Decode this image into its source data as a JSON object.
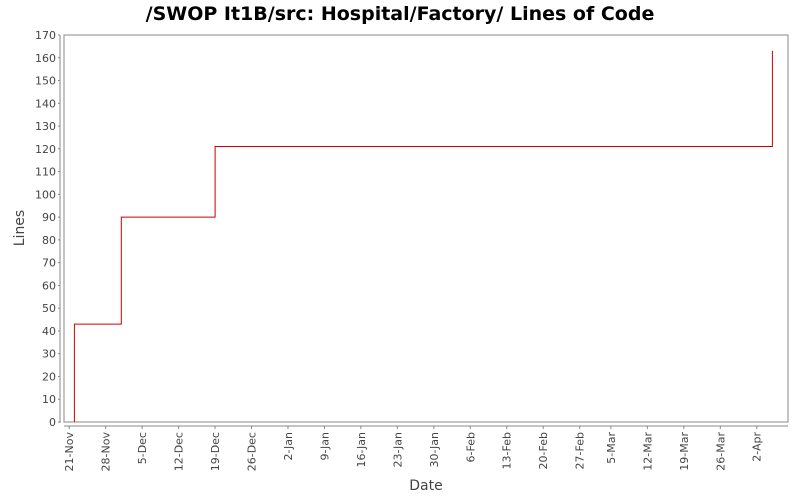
{
  "chart_data": {
    "type": "line",
    "title": "/SWOP It1B/src: Hospital/Factory/ Lines of Code",
    "xlabel": "Date",
    "ylabel": "Lines",
    "ylim": [
      0,
      170
    ],
    "xlim": [
      "2005-11-20",
      "2006-04-08"
    ],
    "yticks": [
      0,
      10,
      20,
      30,
      40,
      50,
      60,
      70,
      80,
      90,
      100,
      110,
      120,
      130,
      140,
      150,
      160,
      170
    ],
    "xticks": [
      {
        "date": "2005-11-21",
        "label": "21-Nov"
      },
      {
        "date": "2005-11-28",
        "label": "28-Nov"
      },
      {
        "date": "2005-12-05",
        "label": "5-Dec"
      },
      {
        "date": "2005-12-12",
        "label": "12-Dec"
      },
      {
        "date": "2005-12-19",
        "label": "19-Dec"
      },
      {
        "date": "2005-12-26",
        "label": "26-Dec"
      },
      {
        "date": "2006-01-02",
        "label": "2-Jan"
      },
      {
        "date": "2006-01-09",
        "label": "9-Jan"
      },
      {
        "date": "2006-01-16",
        "label": "16-Jan"
      },
      {
        "date": "2006-01-23",
        "label": "23-Jan"
      },
      {
        "date": "2006-01-30",
        "label": "30-Jan"
      },
      {
        "date": "2006-02-06",
        "label": "6-Feb"
      },
      {
        "date": "2006-02-13",
        "label": "13-Feb"
      },
      {
        "date": "2006-02-20",
        "label": "20-Feb"
      },
      {
        "date": "2006-02-27",
        "label": "27-Feb"
      },
      {
        "date": "2006-03-05",
        "label": "5-Mar"
      },
      {
        "date": "2006-03-12",
        "label": "12-Mar"
      },
      {
        "date": "2006-03-19",
        "label": "19-Mar"
      },
      {
        "date": "2006-03-26",
        "label": "26-Mar"
      },
      {
        "date": "2006-04-02",
        "label": "2-Apr"
      }
    ],
    "series": [
      {
        "step": true,
        "color": "#cc0000",
        "points": [
          {
            "x": "2005-11-22",
            "y": 0
          },
          {
            "x": "2005-11-22",
            "y": 43
          },
          {
            "x": "2005-12-01",
            "y": 43
          },
          {
            "x": "2005-12-01",
            "y": 90
          },
          {
            "x": "2005-12-19",
            "y": 90
          },
          {
            "x": "2005-12-19",
            "y": 121
          },
          {
            "x": "2006-04-05",
            "y": 121
          },
          {
            "x": "2006-04-05",
            "y": 163
          }
        ]
      }
    ],
    "grid": false,
    "legend": "none",
    "colors": {
      "axis": "#888888",
      "frame": "#888888",
      "text": "#444444"
    }
  }
}
